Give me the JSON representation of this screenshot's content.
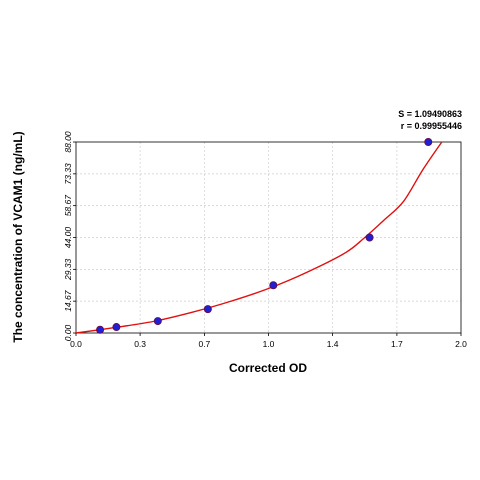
{
  "chart_data": {
    "type": "scatter",
    "title": "",
    "xlabel": "Corrected OD",
    "ylabel": "The concentration of VCAM1 (ng/mL)",
    "xlim": [
      0,
      2.0
    ],
    "ylim": [
      0,
      88
    ],
    "x_ticks": [
      "0.0",
      "0.3",
      "0.7",
      "1.0",
      "1.4",
      "1.7",
      "2.0"
    ],
    "x_tick_values": [
      0,
      0.333,
      0.667,
      1.0,
      1.333,
      1.667,
      2.0
    ],
    "y_ticks": [
      "0.00",
      "14.67",
      "29.33",
      "44.00",
      "58.67",
      "73.33",
      "88.00"
    ],
    "y_tick_values": [
      0,
      14.67,
      29.33,
      44.0,
      58.67,
      73.33,
      88.0
    ],
    "grid": true,
    "annotations": {
      "s_stat": "S = 1.09490863",
      "r_stat": "r = 0.99955446"
    },
    "series": [
      {
        "values_x": [
          0.125,
          0.21,
          0.425,
          0.685,
          1.025,
          1.525,
          1.83
        ],
        "values_y": [
          1.5,
          2.75,
          5.5,
          11,
          22,
          44,
          88
        ]
      }
    ],
    "fit_curve": {
      "x": [
        0.0,
        0.2,
        0.4,
        0.6,
        0.8,
        1.0,
        1.2,
        1.4,
        1.5,
        1.6,
        1.7,
        1.8,
        1.9
      ],
      "y": [
        0.0,
        2.5,
        5.3,
        9.5,
        14.5,
        20.5,
        28.0,
        37.0,
        44.0,
        52.0,
        60.5,
        75.0,
        88.0
      ]
    },
    "colors": {
      "point_fill": "#1f1fd6",
      "point_stroke": "#6b0a3a",
      "curve": "#e01010",
      "grid": "#cfcfcf"
    }
  }
}
